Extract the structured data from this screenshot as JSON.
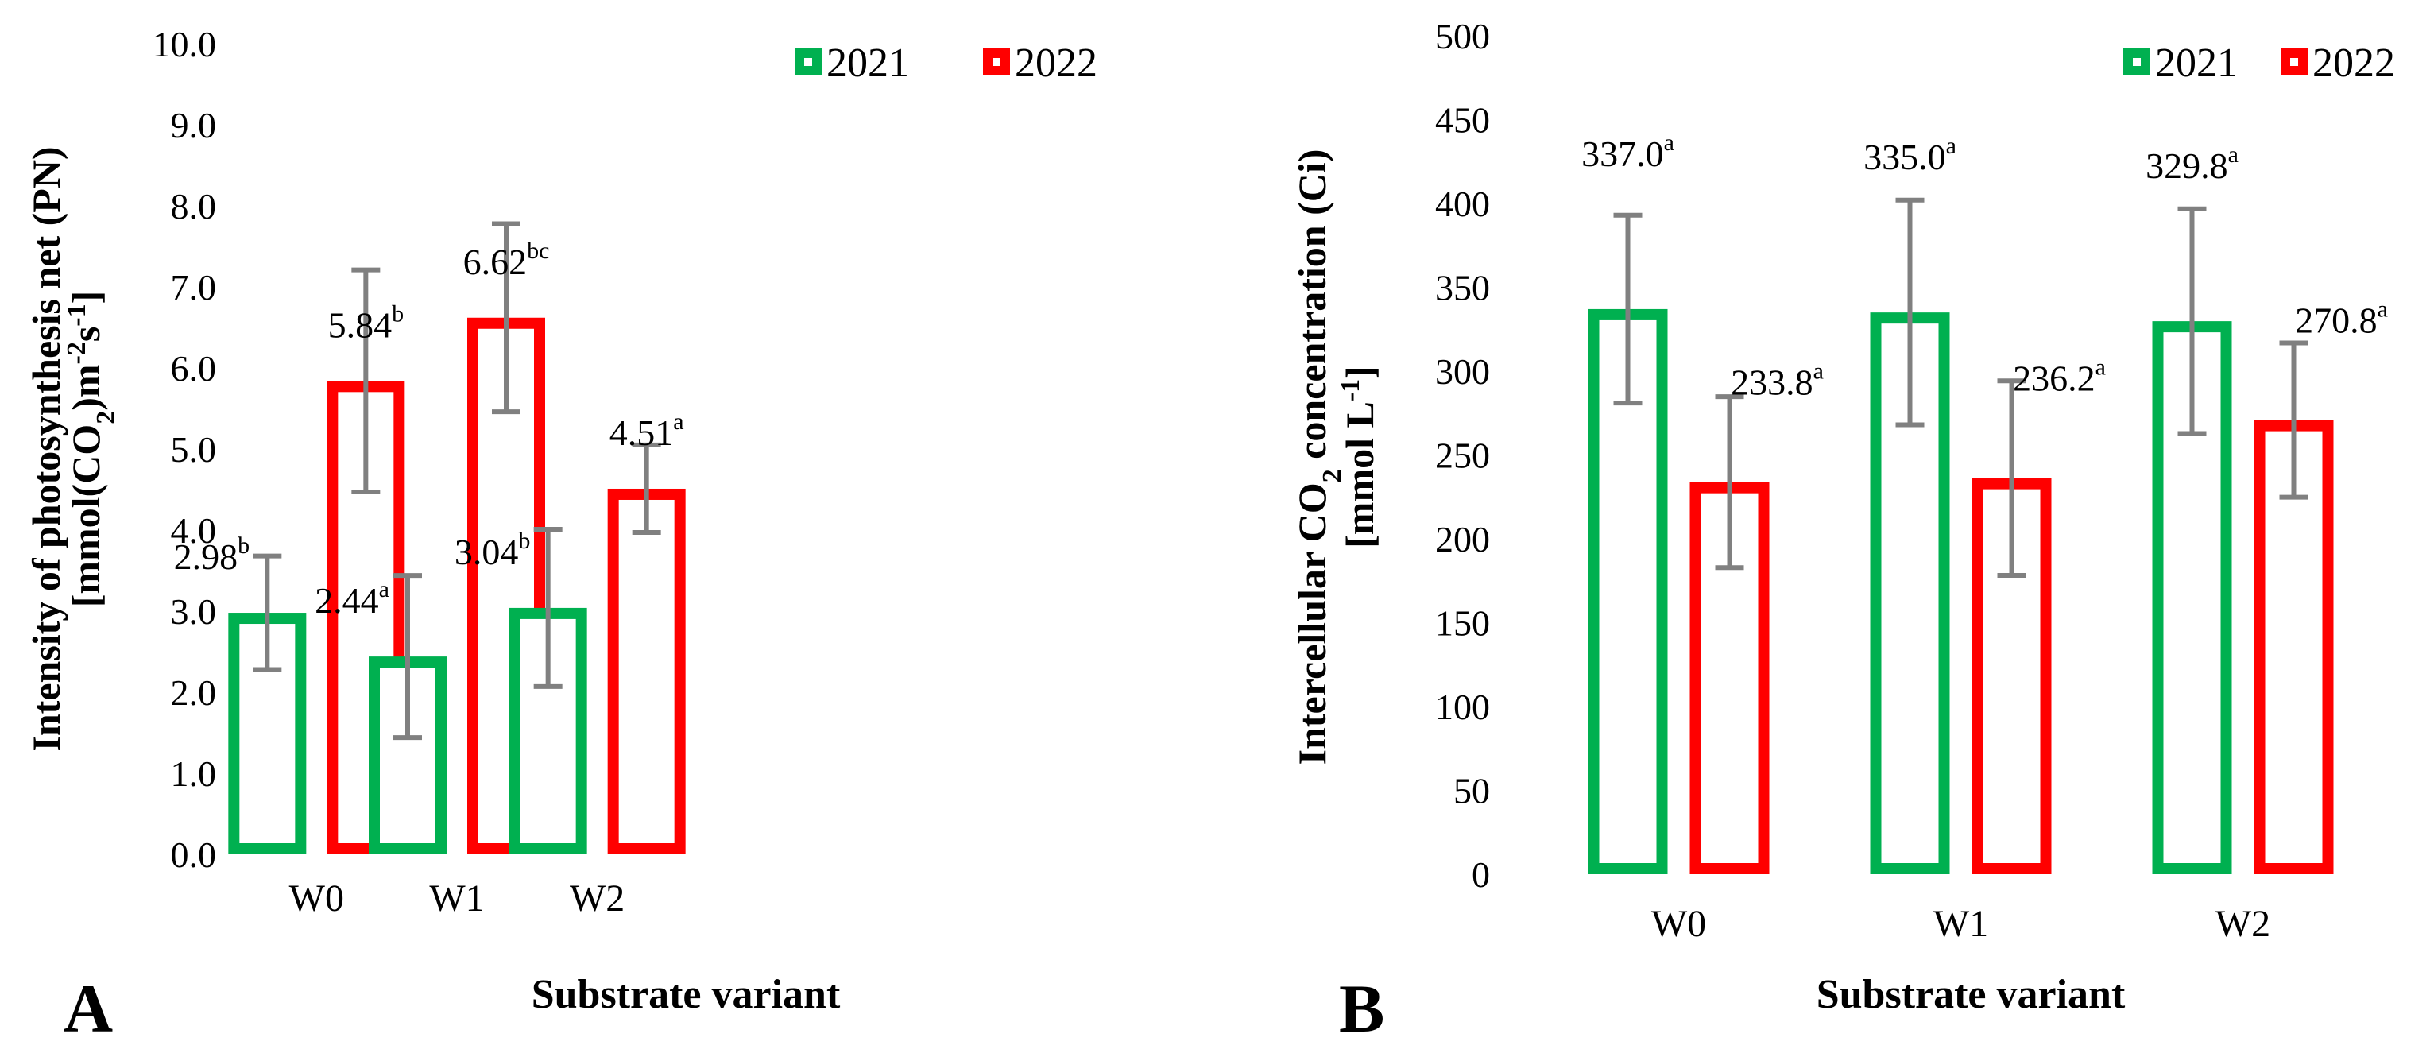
{
  "colors": {
    "y2021": "#00B050",
    "y2022": "#FF0000",
    "errorbar": "#808080"
  },
  "chart_data": [
    {
      "type": "bar",
      "panel": "A",
      "categories": [
        "W0",
        "W1",
        "W2"
      ],
      "series": [
        {
          "name": "2021",
          "values": [
            2.98,
            2.44,
            3.04
          ],
          "errors": [
            0.7,
            1.0,
            0.97
          ],
          "labels": [
            "2.98",
            "2.44",
            "3.04"
          ],
          "sup": [
            "b",
            "a",
            "b"
          ]
        },
        {
          "name": "2022",
          "values": [
            5.84,
            6.62,
            4.51
          ],
          "errors": [
            1.37,
            1.16,
            0.54
          ],
          "labels": [
            "5.84",
            "6.62",
            "4.51"
          ],
          "sup": [
            "b",
            "bc",
            "a"
          ]
        }
      ],
      "ylim": [
        0,
        10
      ],
      "yticks": [
        "0.0",
        "1.0",
        "2.0",
        "3.0",
        "4.0",
        "5.0",
        "6.0",
        "7.0",
        "8.0",
        "9.0",
        "10.0"
      ],
      "ylabel_line1": "Intensity of photosynthesis net (PN)",
      "ylabel_line2_parts": [
        "[mmol(CO",
        "2",
        ")m",
        "-2",
        "s",
        "-1",
        "]"
      ],
      "xlabel": "Substrate variant",
      "legend": [
        "2021",
        "2022"
      ],
      "legend_position": "top-right"
    },
    {
      "type": "bar",
      "panel": "B",
      "categories": [
        "W0",
        "W1",
        "W2"
      ],
      "series": [
        {
          "name": "2021",
          "values": [
            337.0,
            335.0,
            329.8
          ],
          "errors": [
            56,
            67,
            67
          ],
          "labels": [
            "337.0",
            "335.0",
            "329.8"
          ],
          "sup": [
            "a",
            "a",
            "a"
          ]
        },
        {
          "name": "2022",
          "values": [
            233.8,
            236.2,
            270.8
          ],
          "errors": [
            51,
            58,
            46
          ],
          "labels": [
            "233.8",
            "236.2",
            "270.8"
          ],
          "sup": [
            "a",
            "a",
            "a"
          ]
        }
      ],
      "ylim": [
        0,
        500
      ],
      "yticks": [
        "0",
        "50",
        "100",
        "150",
        "200",
        "250",
        "300",
        "350",
        "400",
        "450",
        "500"
      ],
      "ylabel_line1_parts": [
        "Intercellular CO",
        "2",
        " concentration (Ci)"
      ],
      "ylabel_line2_parts": [
        "[mmol L",
        "-1",
        "]"
      ],
      "xlabel": "Substrate variant",
      "legend": [
        "2021",
        "2022"
      ],
      "legend_position": "top-right"
    }
  ],
  "panel_letters": [
    "A",
    "B"
  ]
}
